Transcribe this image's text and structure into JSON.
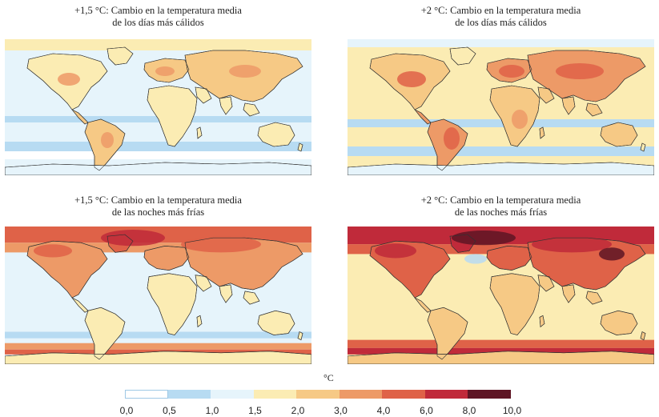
{
  "panels": [
    {
      "title_line1": "+1,5 °C: Cambio en la temperatura media",
      "title_line2": "de los días más cálidos",
      "level": "low_hot"
    },
    {
      "title_line1": "+2 °C: Cambio en la temperatura media",
      "title_line2": "de los días más cálidos",
      "level": "high_hot"
    },
    {
      "title_line1": "+1,5 °C: Cambio en la temperatura media",
      "title_line2": "de las noches más frías",
      "level": "low_cold"
    },
    {
      "title_line1": "+2 °C: Cambio en la temperatura media",
      "title_line2": "de las noches más frías",
      "level": "high_cold"
    }
  ],
  "legend": {
    "unit": "°C",
    "ticks": [
      "0,0",
      "0,5",
      "1,0",
      "1,5",
      "2,0",
      "3,0",
      "4,0",
      "6,0",
      "8,0",
      "10,0"
    ],
    "colors": [
      "#ffffff",
      "#b7dbf2",
      "#e6f4fb",
      "#fbecb3",
      "#f6c985",
      "#ed9a67",
      "#df6248",
      "#c02a3a",
      "#9b1a2e",
      "#5e1524"
    ]
  }
}
